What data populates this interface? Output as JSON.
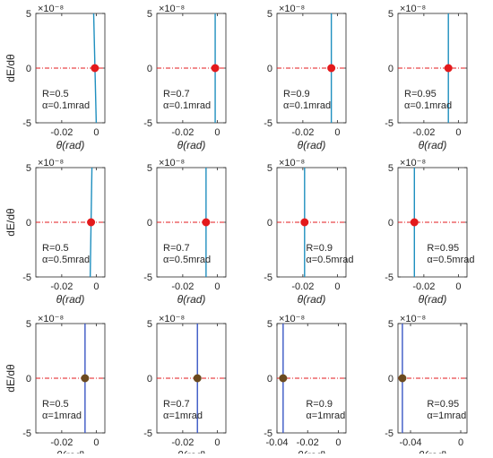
{
  "chart_data": [
    {
      "type": "line",
      "ylabel": "dE/dθ",
      "xlabel": "θ(rad)",
      "exponent": "×10⁻⁸",
      "ylim": [
        -5,
        5
      ],
      "xlim": [
        -0.035,
        0.005
      ],
      "xticks": [
        -0.02,
        0
      ],
      "xtick_labels": [
        "-0.02",
        "0"
      ],
      "yticks": [
        -5,
        0,
        5
      ],
      "ytick_labels": [
        "-5",
        "0",
        "5"
      ],
      "annotation": [
        "R=0.5",
        "α=0.1mrad"
      ],
      "ann_pos": "lower-left",
      "curve": {
        "x": [
          -0.0015,
          0.0
        ],
        "y": [
          5,
          -5
        ]
      },
      "zero_point": {
        "x": -0.0008,
        "y": 0
      },
      "marker_color": "#e31a1c",
      "curve_color": "#1f8fbf"
    },
    {
      "type": "line",
      "ylabel": "",
      "xlabel": "θ(rad)",
      "exponent": "×10⁻⁸",
      "ylim": [
        -5,
        5
      ],
      "xlim": [
        -0.035,
        0.005
      ],
      "xticks": [
        -0.02,
        0
      ],
      "xtick_labels": [
        "-0.02",
        "0"
      ],
      "yticks": [
        -5,
        0,
        5
      ],
      "ytick_labels": [
        "-5",
        "0",
        "5"
      ],
      "annotation": [
        "R=0.7",
        "α=0.1mrad"
      ],
      "ann_pos": "lower-left",
      "curve": {
        "x": [
          -0.0012,
          -0.0012
        ],
        "y": [
          5,
          -5
        ]
      },
      "zero_point": {
        "x": -0.0012,
        "y": 0
      },
      "marker_color": "#e31a1c",
      "curve_color": "#1f8fbf"
    },
    {
      "type": "line",
      "ylabel": "",
      "xlabel": "θ(rad)",
      "exponent": "×10⁻⁸",
      "ylim": [
        -5,
        5
      ],
      "xlim": [
        -0.035,
        0.005
      ],
      "xticks": [
        -0.02,
        0
      ],
      "xtick_labels": [
        "-0.02",
        "0"
      ],
      "yticks": [
        -5,
        0,
        5
      ],
      "ytick_labels": [
        "-5",
        "0",
        "5"
      ],
      "annotation": [
        "R=0.9",
        "α=0.1mrad"
      ],
      "ann_pos": "lower-left",
      "curve": {
        "x": [
          -0.0035,
          -0.0035
        ],
        "y": [
          5,
          -5
        ]
      },
      "zero_point": {
        "x": -0.0035,
        "y": 0
      },
      "marker_color": "#e31a1c",
      "curve_color": "#1f8fbf"
    },
    {
      "type": "line",
      "ylabel": "",
      "xlabel": "θ(rad)",
      "exponent": "×10⁻⁸",
      "ylim": [
        -5,
        5
      ],
      "xlim": [
        -0.035,
        0.005
      ],
      "xticks": [
        -0.02,
        0
      ],
      "xtick_labels": [
        "-0.02",
        "0"
      ],
      "yticks": [
        -5,
        0,
        5
      ],
      "ytick_labels": [
        "-5",
        "0",
        "5"
      ],
      "annotation": [
        "R=0.95",
        "α=0.1mrad"
      ],
      "ann_pos": "lower-left",
      "curve": {
        "x": [
          -0.0058,
          -0.0058
        ],
        "y": [
          5,
          -5
        ]
      },
      "zero_point": {
        "x": -0.0058,
        "y": 0
      },
      "marker_color": "#e31a1c",
      "curve_color": "#1f8fbf"
    },
    {
      "type": "line",
      "ylabel": "dE/dθ",
      "xlabel": "θ(rad)",
      "exponent": "×10⁻⁸",
      "ylim": [
        -5,
        5
      ],
      "xlim": [
        -0.035,
        0.005
      ],
      "xticks": [
        -0.02,
        0
      ],
      "xtick_labels": [
        "-0.02",
        "0"
      ],
      "yticks": [
        -5,
        0,
        5
      ],
      "ytick_labels": [
        "-5",
        "0",
        "5"
      ],
      "annotation": [
        "R=0.5",
        "α=0.5mrad"
      ],
      "ann_pos": "lower-left",
      "curve": {
        "x": [
          -0.0025,
          -0.0035
        ],
        "y": [
          5,
          -5
        ]
      },
      "zero_point": {
        "x": -0.003,
        "y": 0
      },
      "marker_color": "#e31a1c",
      "curve_color": "#1f8fbf"
    },
    {
      "type": "line",
      "ylabel": "",
      "xlabel": "θ(rad)",
      "exponent": "×10⁻⁸",
      "ylim": [
        -5,
        5
      ],
      "xlim": [
        -0.035,
        0.005
      ],
      "xticks": [
        -0.02,
        0
      ],
      "xtick_labels": [
        "-0.02",
        "0"
      ],
      "yticks": [
        -5,
        0,
        5
      ],
      "ytick_labels": [
        "-5",
        "0",
        "5"
      ],
      "annotation": [
        "R=0.7",
        "α=0.5mrad"
      ],
      "ann_pos": "lower-left",
      "curve": {
        "x": [
          -0.0065,
          -0.0065
        ],
        "y": [
          5,
          -5
        ]
      },
      "zero_point": {
        "x": -0.0065,
        "y": 0
      },
      "marker_color": "#e31a1c",
      "curve_color": "#1f8fbf"
    },
    {
      "type": "line",
      "ylabel": "",
      "xlabel": "θ(rad)",
      "exponent": "×10⁻⁸",
      "ylim": [
        -5,
        5
      ],
      "xlim": [
        -0.035,
        0.005
      ],
      "xticks": [
        -0.02,
        0
      ],
      "xtick_labels": [
        "-0.02",
        "0"
      ],
      "yticks": [
        -5,
        0,
        5
      ],
      "ytick_labels": [
        "-5",
        "0",
        "5"
      ],
      "annotation": [
        "R=0.9",
        "α=0.5mrad"
      ],
      "ann_pos": "lower-right",
      "curve": {
        "x": [
          -0.019,
          -0.019
        ],
        "y": [
          5,
          -5
        ]
      },
      "zero_point": {
        "x": -0.019,
        "y": 0
      },
      "marker_color": "#e31a1c",
      "curve_color": "#1f8fbf"
    },
    {
      "type": "line",
      "ylabel": "",
      "xlabel": "θ(rad)",
      "exponent": "×10⁻⁸",
      "ylim": [
        -5,
        5
      ],
      "xlim": [
        -0.035,
        0.005
      ],
      "xticks": [
        -0.02,
        0
      ],
      "xtick_labels": [
        "-0.02",
        "0"
      ],
      "yticks": [
        -5,
        0,
        5
      ],
      "ytick_labels": [
        "-5",
        "0",
        "5"
      ],
      "annotation": [
        "R=0.95",
        "α=0.5mrad"
      ],
      "ann_pos": "lower-right",
      "curve": {
        "x": [
          -0.0255,
          -0.0255
        ],
        "y": [
          5,
          -5
        ]
      },
      "zero_point": {
        "x": -0.0255,
        "y": 0
      },
      "marker_color": "#e31a1c",
      "curve_color": "#1f8fbf"
    },
    {
      "type": "line",
      "ylabel": "dE/dθ",
      "xlabel": "θ(rad)",
      "exponent": "×10⁻⁸",
      "ylim": [
        -5,
        5
      ],
      "xlim": [
        -0.035,
        0.005
      ],
      "xticks": [
        -0.02,
        0
      ],
      "xtick_labels": [
        "-0.02",
        "0"
      ],
      "yticks": [
        -5,
        0,
        5
      ],
      "ytick_labels": [
        "-5",
        "0",
        "5"
      ],
      "annotation": [
        "R=0.5",
        "α=1mrad"
      ],
      "ann_pos": "lower-left",
      "curve": {
        "x": [
          -0.0065,
          -0.0065
        ],
        "y": [
          5,
          -5
        ]
      },
      "zero_point": {
        "x": -0.0065,
        "y": 0
      },
      "marker_color": "#6b4a1f",
      "curve_color": "#3a57c4"
    },
    {
      "type": "line",
      "ylabel": "",
      "xlabel": "θ(rad)",
      "exponent": "×10⁻⁸",
      "ylim": [
        -5,
        5
      ],
      "xlim": [
        -0.035,
        0.005
      ],
      "xticks": [
        -0.02,
        0
      ],
      "xtick_labels": [
        "-0.02",
        "0"
      ],
      "yticks": [
        -5,
        0,
        5
      ],
      "ytick_labels": [
        "-5",
        "0",
        "5"
      ],
      "annotation": [
        "R=0.7",
        "α=1mrad"
      ],
      "ann_pos": "lower-left",
      "curve": {
        "x": [
          -0.0115,
          -0.0115
        ],
        "y": [
          5,
          -5
        ]
      },
      "zero_point": {
        "x": -0.0115,
        "y": 0
      },
      "marker_color": "#6b4a1f",
      "curve_color": "#3a57c4"
    },
    {
      "type": "line",
      "ylabel": "",
      "xlabel": "θ(rad)",
      "exponent": "×10⁻⁸",
      "ylim": [
        -5,
        5
      ],
      "xlim": [
        -0.04,
        0.005
      ],
      "xticks": [
        -0.04,
        -0.02,
        0
      ],
      "xtick_labels": [
        "-0.04",
        "-0.02",
        "0"
      ],
      "yticks": [
        -5,
        0,
        5
      ],
      "ytick_labels": [
        "-5",
        "0",
        "5"
      ],
      "annotation": [
        "R=0.9",
        "α=1mrad"
      ],
      "ann_pos": "lower-right",
      "curve": {
        "x": [
          -0.036,
          -0.036
        ],
        "y": [
          5,
          -5
        ]
      },
      "zero_point": {
        "x": -0.036,
        "y": 0
      },
      "marker_color": "#6b4a1f",
      "curve_color": "#3a57c4"
    },
    {
      "type": "line",
      "ylabel": "",
      "xlabel": "θ(rad)",
      "exponent": "×10⁻⁸",
      "ylim": [
        -5,
        5
      ],
      "xlim": [
        -0.05,
        0.005
      ],
      "xticks": [
        -0.04,
        0
      ],
      "xtick_labels": [
        "-0.04",
        "0"
      ],
      "yticks": [
        -5,
        0,
        5
      ],
      "ytick_labels": [
        "-5",
        "0",
        "5"
      ],
      "annotation": [
        "R=0.95",
        "α=1mrad"
      ],
      "ann_pos": "lower-right",
      "curve": {
        "x": [
          -0.0465,
          -0.0465
        ],
        "y": [
          5,
          -5
        ]
      },
      "zero_point": {
        "x": -0.0465,
        "y": 0
      },
      "marker_color": "#6b4a1f",
      "curve_color": "#3a57c4"
    }
  ]
}
